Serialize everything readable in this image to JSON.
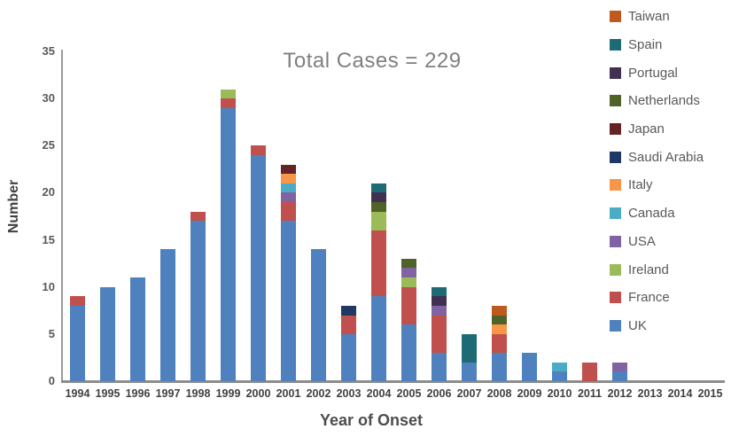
{
  "title": "Total Cases = 229",
  "background_color": "#ffffff",
  "chart_data": {
    "type": "bar",
    "stacked": true,
    "title": "Total Cases = 229",
    "xlabel": "Year of Onset",
    "ylabel": "Number",
    "ylim": [
      0,
      35
    ],
    "y_ticks": [
      0,
      5,
      10,
      15,
      20,
      25,
      30,
      35
    ],
    "grid": false,
    "legend_position": "right",
    "legend_order_top_to_bottom": [
      "Taiwan",
      "Spain",
      "Portugal",
      "Netherlands",
      "Japan",
      "Saudi Arabia",
      "Italy",
      "Canada",
      "USA",
      "Ireland",
      "France",
      "UK"
    ],
    "categories": [
      "1994",
      "1995",
      "1996",
      "1997",
      "1998",
      "1999",
      "2000",
      "2001",
      "2002",
      "2003",
      "2004",
      "2005",
      "2006",
      "2007",
      "2008",
      "2009",
      "2010",
      "2011",
      "2012",
      "2013",
      "2014",
      "2015"
    ],
    "series": [
      {
        "name": "UK",
        "color": "#4E81BD",
        "values": [
          8,
          10,
          11,
          14,
          17,
          29,
          24,
          17,
          14,
          5,
          9,
          6,
          3,
          2,
          3,
          3,
          1,
          0,
          1,
          0,
          0,
          0
        ]
      },
      {
        "name": "France",
        "color": "#C0504D",
        "values": [
          1,
          0,
          0,
          0,
          1,
          1,
          1,
          2,
          0,
          2,
          7,
          4,
          4,
          0,
          2,
          0,
          0,
          2,
          0,
          0,
          0,
          0
        ]
      },
      {
        "name": "Ireland",
        "color": "#9BBB59",
        "values": [
          0,
          0,
          0,
          0,
          0,
          1,
          0,
          0,
          0,
          0,
          2,
          1,
          0,
          0,
          0,
          0,
          0,
          0,
          0,
          0,
          0,
          0
        ]
      },
      {
        "name": "USA",
        "color": "#8064A2",
        "values": [
          0,
          0,
          0,
          0,
          0,
          0,
          0,
          1,
          0,
          0,
          0,
          1,
          1,
          0,
          0,
          0,
          0,
          0,
          1,
          0,
          0,
          0
        ]
      },
      {
        "name": "Canada",
        "color": "#4BACC6",
        "values": [
          0,
          0,
          0,
          0,
          0,
          0,
          0,
          1,
          0,
          0,
          0,
          0,
          0,
          0,
          0,
          0,
          1,
          0,
          0,
          0,
          0,
          0
        ]
      },
      {
        "name": "Italy",
        "color": "#F79646",
        "values": [
          0,
          0,
          0,
          0,
          0,
          0,
          0,
          1,
          0,
          0,
          0,
          0,
          0,
          0,
          1,
          0,
          0,
          0,
          0,
          0,
          0,
          0
        ]
      },
      {
        "name": "Saudi Arabia",
        "color": "#1F3864",
        "values": [
          0,
          0,
          0,
          0,
          0,
          0,
          0,
          0,
          0,
          1,
          0,
          0,
          0,
          0,
          0,
          0,
          0,
          0,
          0,
          0,
          0,
          0
        ]
      },
      {
        "name": "Japan",
        "color": "#632423",
        "values": [
          0,
          0,
          0,
          0,
          0,
          0,
          0,
          1,
          0,
          0,
          0,
          0,
          0,
          0,
          0,
          0,
          0,
          0,
          0,
          0,
          0,
          0
        ]
      },
      {
        "name": "Netherlands",
        "color": "#4F6228",
        "values": [
          0,
          0,
          0,
          0,
          0,
          0,
          0,
          0,
          0,
          0,
          1,
          1,
          0,
          0,
          1,
          0,
          0,
          0,
          0,
          0,
          0,
          0
        ]
      },
      {
        "name": "Portugal",
        "color": "#403152",
        "values": [
          0,
          0,
          0,
          0,
          0,
          0,
          0,
          0,
          0,
          0,
          1,
          0,
          1,
          0,
          0,
          0,
          0,
          0,
          0,
          0,
          0,
          0
        ]
      },
      {
        "name": "Spain",
        "color": "#1F6B75",
        "values": [
          0,
          0,
          0,
          0,
          0,
          0,
          0,
          0,
          0,
          0,
          1,
          0,
          1,
          3,
          0,
          0,
          0,
          0,
          0,
          0,
          0,
          0
        ]
      },
      {
        "name": "Taiwan",
        "color": "#BE5A1D",
        "values": [
          0,
          0,
          0,
          0,
          0,
          0,
          0,
          0,
          0,
          0,
          0,
          0,
          0,
          0,
          1,
          0,
          0,
          0,
          0,
          0,
          0,
          0
        ]
      }
    ],
    "yearly_totals": [
      9,
      10,
      11,
      14,
      18,
      31,
      25,
      23,
      14,
      8,
      21,
      13,
      10,
      5,
      8,
      3,
      2,
      2,
      2,
      0,
      0,
      0
    ],
    "total_cases": 229
  }
}
